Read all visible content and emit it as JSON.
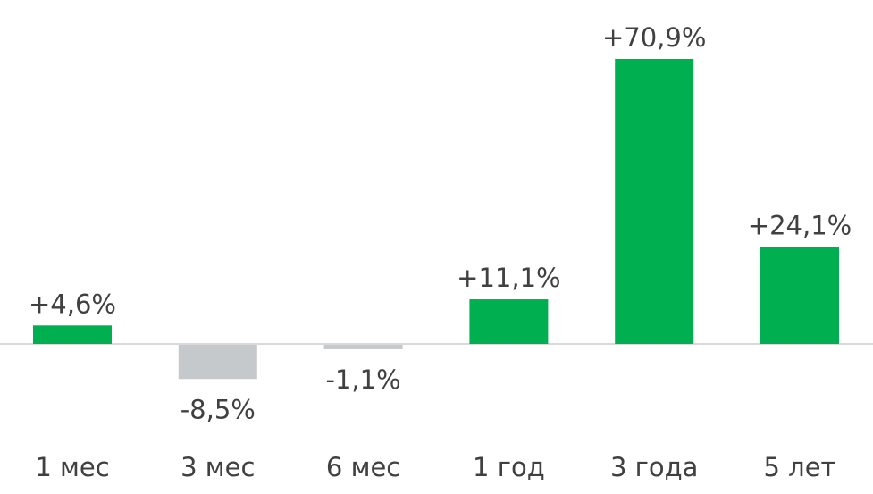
{
  "chart_data": {
    "type": "bar",
    "title": "",
    "xlabel": "",
    "ylabel": "",
    "categories": [
      "1 мес",
      "3 мес",
      "6 мес",
      "1 год",
      "3 года",
      "5 лет"
    ],
    "values": [
      4.6,
      -8.5,
      -1.1,
      11.1,
      70.9,
      24.1
    ],
    "value_labels": [
      "+4,6%",
      "-8,5%",
      "-1,1%",
      "+11,1%",
      "+70,9%",
      "+24,1%"
    ],
    "unit": "%",
    "grid": false,
    "legend": "none",
    "colors": {
      "positive": "#00b050",
      "negative": "#c5c9cc",
      "baseline": "#d9d9d9",
      "text": "#404040"
    }
  }
}
